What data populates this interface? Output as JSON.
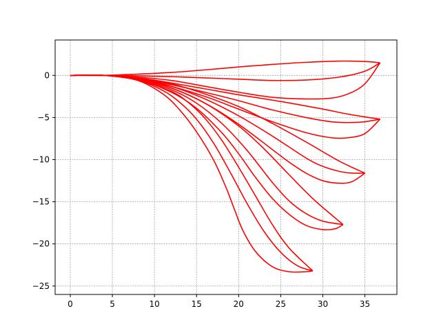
{
  "chart_data": {
    "type": "line",
    "title": "",
    "xlabel": "",
    "ylabel": "",
    "xlim": [
      -1.8,
      38.8
    ],
    "ylim": [
      -26,
      4.2
    ],
    "xticks": [
      0,
      5,
      10,
      15,
      20,
      25,
      30,
      35
    ],
    "yticks": [
      0,
      -5,
      -10,
      -15,
      -20,
      -25
    ],
    "xtick_labels": [
      "0",
      "5",
      "10",
      "15",
      "20",
      "25",
      "30",
      "35"
    ],
    "ytick_labels": [
      "0",
      "−5",
      "−10",
      "−15",
      "−20",
      "−25"
    ],
    "grid": true,
    "legend": "none",
    "colors": {
      "series": "#ff0000",
      "grid": "#a0a0a0",
      "axes": "#000000"
    },
    "series": [
      {
        "x": [
          0,
          4,
          8,
          12,
          16,
          20,
          24,
          28,
          32,
          35,
          36.8
        ],
        "y": [
          0,
          0,
          0.15,
          0.35,
          0.65,
          1.0,
          1.3,
          1.55,
          1.7,
          1.65,
          1.5
        ]
      },
      {
        "x": [
          0,
          4,
          8,
          12,
          16,
          20,
          24,
          28,
          32,
          35,
          36.8
        ],
        "y": [
          0,
          0,
          -0.05,
          -0.15,
          -0.3,
          -0.45,
          -0.6,
          -0.55,
          -0.2,
          0.5,
          1.5
        ]
      },
      {
        "x": [
          0,
          4,
          8,
          12,
          16,
          20,
          24,
          28,
          31,
          33,
          35,
          36.8
        ],
        "y": [
          0,
          0,
          -0.2,
          -0.6,
          -1.3,
          -2.0,
          -2.6,
          -2.8,
          -2.7,
          -2.2,
          -1.0,
          1.5
        ]
      },
      {
        "x": [
          0,
          4,
          8,
          12,
          16,
          20,
          25,
          30,
          33,
          36.8
        ],
        "y": [
          0,
          0,
          -0.3,
          -0.9,
          -1.6,
          -2.3,
          -3.1,
          -4.0,
          -4.6,
          -5.2
        ]
      },
      {
        "x": [
          0,
          4,
          8,
          12,
          16,
          20,
          24,
          28,
          31,
          33,
          35,
          36.8
        ],
        "y": [
          0,
          0,
          -0.3,
          -1.1,
          -2.0,
          -3.0,
          -4.1,
          -5.0,
          -5.5,
          -5.6,
          -5.5,
          -5.2
        ]
      },
      {
        "x": [
          0,
          4,
          8,
          12,
          16,
          20,
          24,
          28,
          31,
          33,
          35,
          36.8
        ],
        "y": [
          0,
          0,
          -0.4,
          -1.3,
          -2.5,
          -4.0,
          -5.5,
          -6.8,
          -7.4,
          -7.4,
          -6.9,
          -5.2
        ]
      },
      {
        "x": [
          0,
          4,
          8,
          12,
          16,
          20,
          24,
          28,
          32,
          35
        ],
        "y": [
          0,
          0,
          -0.3,
          -1.0,
          -2.2,
          -3.7,
          -5.7,
          -7.9,
          -10.2,
          -11.6
        ]
      },
      {
        "x": [
          0,
          4,
          8,
          12,
          16,
          20,
          24,
          28,
          30,
          32,
          33.5,
          35
        ],
        "y": [
          0,
          0,
          -0.35,
          -1.3,
          -2.8,
          -4.8,
          -7.2,
          -9.8,
          -10.8,
          -11.4,
          -11.6,
          -11.6
        ]
      },
      {
        "x": [
          0,
          4,
          8,
          12,
          16,
          20,
          24,
          26,
          28,
          30,
          32,
          33.5,
          35
        ],
        "y": [
          0,
          0,
          -0.4,
          -1.5,
          -3.3,
          -5.8,
          -8.8,
          -10.3,
          -11.6,
          -12.5,
          -12.8,
          -12.6,
          -11.6
        ]
      },
      {
        "x": [
          0,
          4,
          8,
          12,
          16,
          20,
          23,
          26,
          29,
          32.4
        ],
        "y": [
          0,
          0,
          -0.4,
          -1.5,
          -3.3,
          -6.0,
          -8.7,
          -11.8,
          -14.8,
          -17.7
        ]
      },
      {
        "x": [
          0,
          4,
          8,
          12,
          15,
          18,
          21,
          24,
          26,
          28,
          30,
          32.4
        ],
        "y": [
          0,
          0,
          -0.45,
          -1.7,
          -3.3,
          -5.7,
          -8.9,
          -12.7,
          -14.9,
          -16.4,
          -17.3,
          -17.7
        ]
      },
      {
        "x": [
          0,
          4,
          8,
          12,
          15,
          18,
          20,
          22,
          24,
          26,
          28,
          30,
          31.5,
          32.4
        ],
        "y": [
          0,
          0,
          -0.5,
          -2.0,
          -3.9,
          -6.8,
          -9.3,
          -12.1,
          -14.6,
          -16.5,
          -17.8,
          -18.3,
          -18.2,
          -17.7
        ]
      },
      {
        "x": [
          0,
          4,
          8,
          12,
          14,
          16,
          18,
          20,
          22,
          24,
          26,
          28.8
        ],
        "y": [
          0,
          0,
          -0.5,
          -1.9,
          -3.2,
          -5.1,
          -7.7,
          -10.9,
          -14.3,
          -17.7,
          -20.5,
          -23.2
        ]
      },
      {
        "x": [
          0,
          4,
          8,
          11,
          13,
          15,
          17,
          19,
          21,
          23,
          25,
          27,
          28.8
        ],
        "y": [
          0,
          0,
          -0.55,
          -1.8,
          -3.2,
          -5.2,
          -8.0,
          -11.5,
          -15.2,
          -18.5,
          -21.0,
          -22.6,
          -23.2
        ]
      },
      {
        "x": [
          0,
          4,
          8,
          11,
          13,
          15,
          17,
          18.5,
          19.5,
          20.5,
          22,
          24,
          26,
          28,
          28.8
        ],
        "y": [
          0,
          0,
          -0.6,
          -2.2,
          -4.1,
          -6.7,
          -10.0,
          -13.3,
          -15.9,
          -18.4,
          -20.9,
          -22.7,
          -23.3,
          -23.3,
          -23.2
        ]
      }
    ]
  }
}
